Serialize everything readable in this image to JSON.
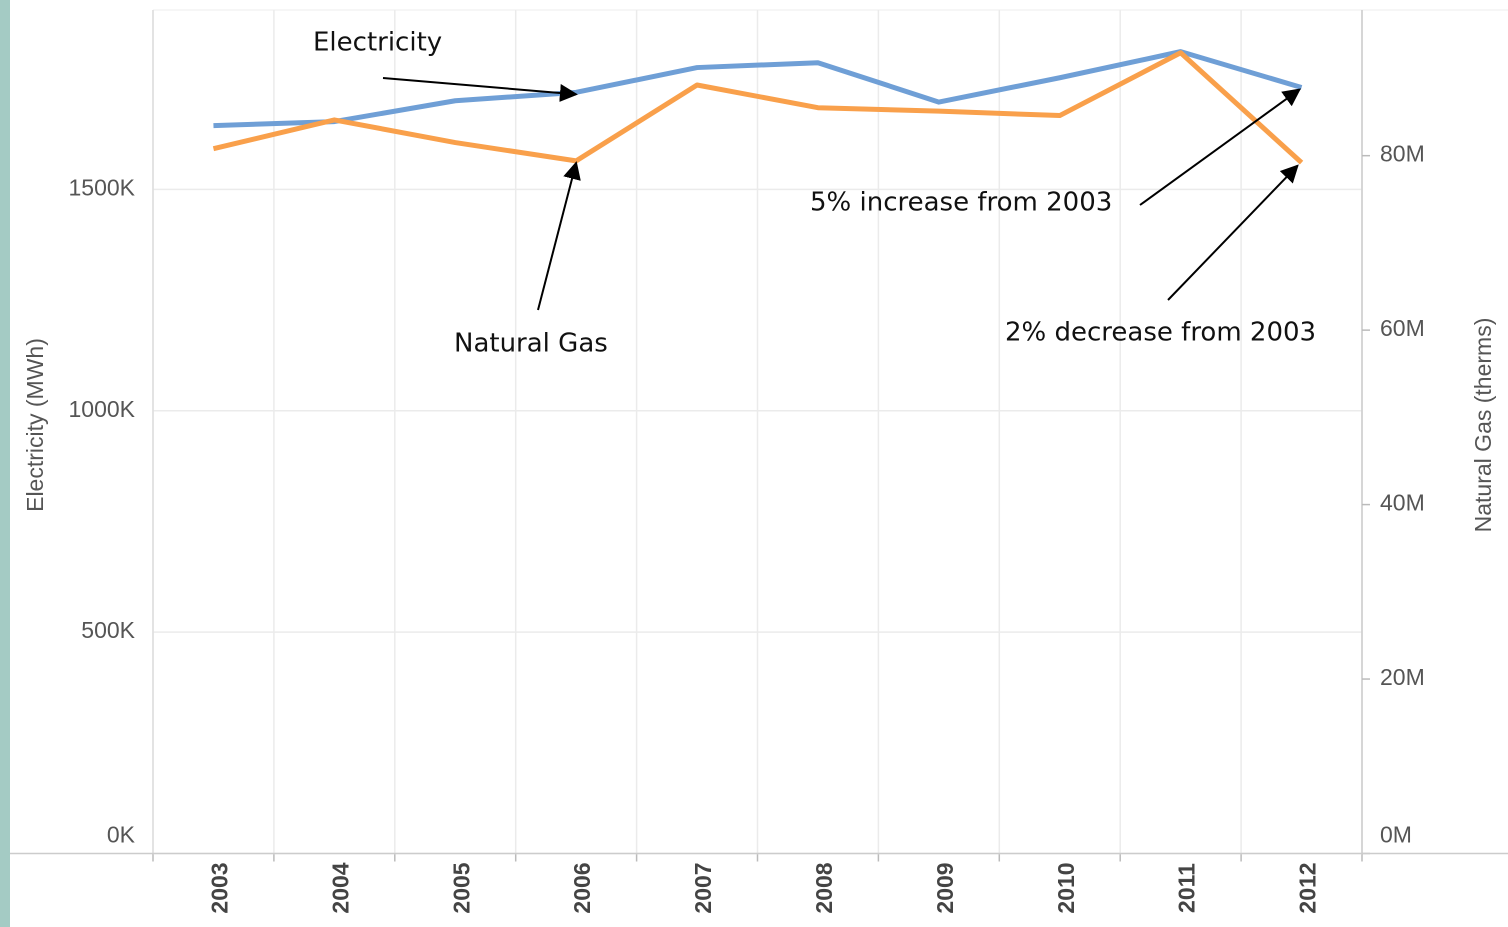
{
  "chart_data": {
    "type": "line",
    "categories": [
      "2003",
      "2004",
      "2005",
      "2006",
      "2007",
      "2008",
      "2009",
      "2010",
      "2011",
      "2012"
    ],
    "series": [
      {
        "name": "Electricity",
        "color": "#6f9fd6",
        "values": [
          1644000,
          1653000,
          1700000,
          1719000,
          1775000,
          1786000,
          1697000,
          1752000,
          1811000,
          1730000
        ]
      },
      {
        "name": "Natural Gas",
        "color": "#f9a04b",
        "axis": "y2",
        "values": [
          80800000,
          84100000,
          81500000,
          79400000,
          88100000,
          85500000,
          85100000,
          84600000,
          91800000,
          79200000
        ]
      }
    ],
    "ylabel": "Electricity (MWh)",
    "y2label": "Natural Gas (therms)",
    "ylim": [
      0,
      1905000
    ],
    "yticks": [
      {
        "value": 0,
        "label": "0K"
      },
      {
        "value": 500000,
        "label": "500K"
      },
      {
        "value": 1000000,
        "label": "1000K"
      },
      {
        "value": 1500000,
        "label": "1500K"
      }
    ],
    "y2lim": [
      0,
      96700000
    ],
    "y2ticks": [
      {
        "value": 0,
        "label": "0M"
      },
      {
        "value": 20000000,
        "label": "20M"
      },
      {
        "value": 40000000,
        "label": "40M"
      },
      {
        "value": 60000000,
        "label": "60M"
      },
      {
        "value": 80000000,
        "label": "80M"
      }
    ],
    "grid": true,
    "annotations": [
      "5% increase from 2003",
      "2% decrease from 2003"
    ]
  }
}
